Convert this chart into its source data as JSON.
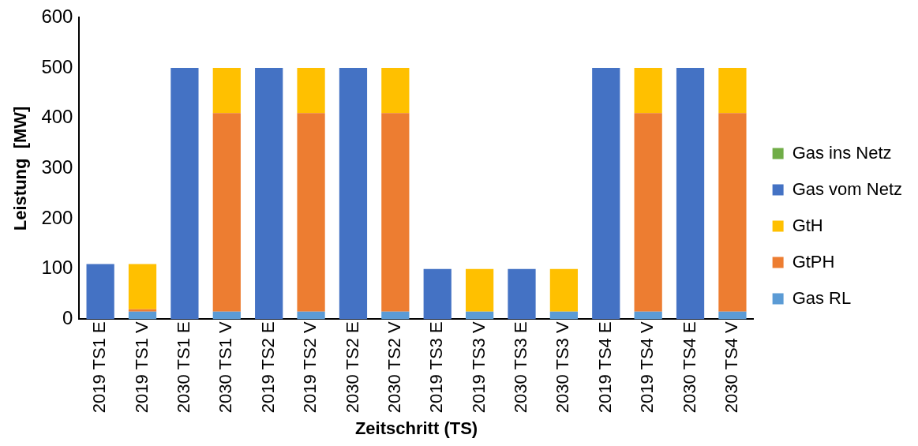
{
  "chart_data": {
    "type": "bar",
    "xlabel": "Zeitschritt (TS)",
    "ylabel": "Leistung  [MW]",
    "categories": [
      "2019 TS1 E",
      "2019 TS1 V",
      "2030 TS1 E",
      "2030 TS1 V",
      "2019 TS2 E",
      "2019 TS2 V",
      "2030 TS2 E",
      "2030 TS2 V",
      "2019 TS3 E",
      "2019 TS3 V",
      "2030 TS3 E",
      "2030 TS3 V",
      "2019 TS4 E",
      "2019 TS4 V",
      "2030 TS4 E",
      "2030 TS4 V"
    ],
    "stacked": true,
    "ylim": [
      0,
      600
    ],
    "yticks": [
      0,
      100,
      200,
      300,
      400,
      500,
      600
    ],
    "grid": false,
    "legend": "right",
    "series": [
      {
        "name": "Gas RL",
        "color": "#5b9bd5",
        "values": [
          0,
          15,
          0,
          15,
          0,
          15,
          0,
          15,
          0,
          15,
          0,
          15,
          0,
          15,
          0,
          15
        ]
      },
      {
        "name": "GtPH",
        "color": "#ed7d31",
        "values": [
          0,
          5,
          0,
          395,
          0,
          395,
          0,
          395,
          0,
          0,
          0,
          0,
          0,
          395,
          0,
          395
        ]
      },
      {
        "name": "GtH",
        "color": "#ffc000",
        "values": [
          0,
          90,
          0,
          90,
          0,
          90,
          0,
          90,
          0,
          85,
          0,
          85,
          0,
          90,
          0,
          90
        ]
      },
      {
        "name": "Gas vom Netz",
        "color": "#4472c4",
        "values": [
          110,
          0,
          500,
          0,
          500,
          0,
          500,
          0,
          100,
          0,
          100,
          0,
          500,
          0,
          500,
          0
        ]
      },
      {
        "name": "Gas ins Netz",
        "color": "#70ad47",
        "values": [
          0,
          0,
          0,
          0,
          0,
          0,
          0,
          0,
          0,
          0,
          0,
          0,
          0,
          0,
          0,
          0
        ]
      }
    ]
  }
}
